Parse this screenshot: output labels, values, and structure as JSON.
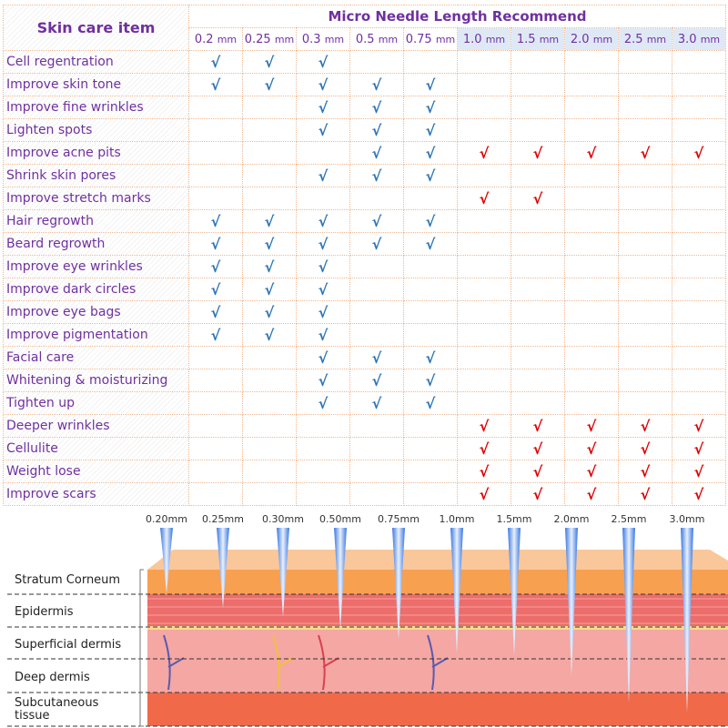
{
  "table": {
    "item_header": "Skin care item",
    "title": "Micro Needle Length Recommend",
    "unit": "mm",
    "columns": [
      "0.2",
      "0.25",
      "0.3",
      "0.5",
      "0.75",
      "1.0",
      "1.5",
      "2.0",
      "2.5",
      "3.0"
    ],
    "check_symbol": "√",
    "colors": {
      "shallow_check": "#2e75b6",
      "deep_check": "#e00000",
      "text": "#7030a0"
    },
    "rows": [
      {
        "label": "Cell regentration",
        "marks": [
          1,
          1,
          1,
          0,
          0,
          0,
          0,
          0,
          0,
          0
        ]
      },
      {
        "label": "Improve skin tone",
        "marks": [
          1,
          1,
          1,
          1,
          1,
          0,
          0,
          0,
          0,
          0
        ]
      },
      {
        "label": "Improve  fine wrinkles",
        "marks": [
          0,
          0,
          1,
          1,
          1,
          0,
          0,
          0,
          0,
          0
        ]
      },
      {
        "label": "Lighten spots",
        "marks": [
          0,
          0,
          1,
          1,
          1,
          0,
          0,
          0,
          0,
          0
        ]
      },
      {
        "label": "Improve acne pits",
        "marks": [
          0,
          0,
          0,
          1,
          1,
          1,
          1,
          1,
          1,
          1
        ]
      },
      {
        "label": "Shrink skin pores",
        "marks": [
          0,
          0,
          1,
          1,
          1,
          0,
          0,
          0,
          0,
          0
        ]
      },
      {
        "label": "Improve stretch marks",
        "marks": [
          0,
          0,
          0,
          0,
          0,
          1,
          1,
          0,
          0,
          0
        ]
      },
      {
        "label": "Hair regrowth",
        "marks": [
          1,
          1,
          1,
          1,
          1,
          0,
          0,
          0,
          0,
          0
        ]
      },
      {
        "label": "Beard regrowth",
        "marks": [
          1,
          1,
          1,
          1,
          1,
          0,
          0,
          0,
          0,
          0
        ]
      },
      {
        "label": "Improve eye wrinkles",
        "marks": [
          1,
          1,
          1,
          0,
          0,
          0,
          0,
          0,
          0,
          0
        ]
      },
      {
        "label": "Improve dark circles",
        "marks": [
          1,
          1,
          1,
          0,
          0,
          0,
          0,
          0,
          0,
          0
        ]
      },
      {
        "label": "Improve eye bags",
        "marks": [
          1,
          1,
          1,
          0,
          0,
          0,
          0,
          0,
          0,
          0
        ]
      },
      {
        "label": "Improve pigmentation",
        "marks": [
          1,
          1,
          1,
          0,
          0,
          0,
          0,
          0,
          0,
          0
        ]
      },
      {
        "label": "Facial care",
        "marks": [
          0,
          0,
          1,
          1,
          1,
          0,
          0,
          0,
          0,
          0
        ]
      },
      {
        "label": "Whitening & moisturizing",
        "marks": [
          0,
          0,
          1,
          1,
          1,
          0,
          0,
          0,
          0,
          0
        ]
      },
      {
        "label": "Tighten up",
        "marks": [
          0,
          0,
          1,
          1,
          1,
          0,
          0,
          0,
          0,
          0
        ]
      },
      {
        "label": "Deeper wrinkles",
        "marks": [
          0,
          0,
          0,
          0,
          0,
          1,
          1,
          1,
          1,
          1
        ]
      },
      {
        "label": "Cellulite",
        "marks": [
          0,
          0,
          0,
          0,
          0,
          1,
          1,
          1,
          1,
          1
        ]
      },
      {
        "label": "Weight lose",
        "marks": [
          0,
          0,
          0,
          0,
          0,
          1,
          1,
          1,
          1,
          1
        ]
      },
      {
        "label": "Improve  scars",
        "marks": [
          0,
          0,
          0,
          0,
          0,
          1,
          1,
          1,
          1,
          1
        ]
      }
    ]
  },
  "diagram": {
    "needles": [
      "0.20mm",
      "0.25mm",
      "0.30mm",
      "0.50mm",
      "0.75mm",
      "1.0mm",
      "1.5mm",
      "2.0mm",
      "2.5mm",
      "3.0mm"
    ],
    "layers": [
      "Stratum Corneum",
      "Epidermis",
      "Superficial dermis",
      "Deep dermis",
      "Subcutaneous",
      "tissue"
    ],
    "colors": {
      "stratum": "#f7a050",
      "epidermis": "#ec6d6a",
      "dermis": "#f4a7a3",
      "subcutaneous": "#f06a4a",
      "needle": "#3a78e0"
    }
  }
}
